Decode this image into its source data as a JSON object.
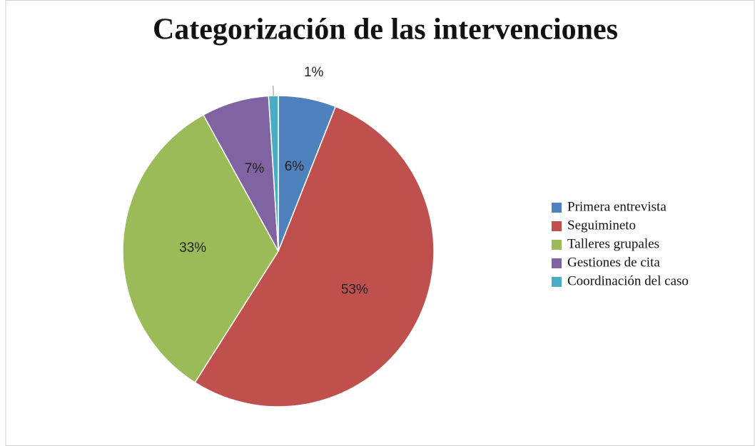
{
  "chart_data": {
    "type": "pie",
    "title": "Categorización de las intervenciones",
    "categories": [
      "Primera entrevista",
      "Seguimineto",
      "Talleres grupales",
      "Gestiones de cita",
      "Coordinación del caso"
    ],
    "values": [
      6,
      53,
      33,
      7,
      1
    ],
    "value_labels": [
      "6%",
      "53%",
      "33%",
      "7%",
      "1%"
    ],
    "colors": [
      "#4f81bd",
      "#c0504d",
      "#9bbb59",
      "#8064a2",
      "#4bacc6"
    ],
    "legend": "right"
  }
}
